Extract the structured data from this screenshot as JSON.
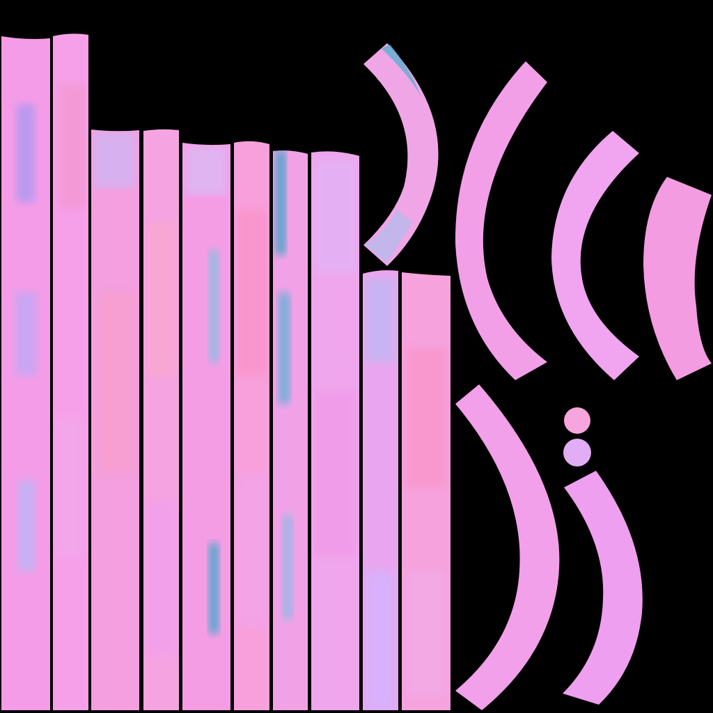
{
  "canvas": {
    "background": "#000000"
  },
  "palette": {
    "pink": "#f7a8e6",
    "magenta": "#f68cf0",
    "rose": "#f9a3d1",
    "lavender": "#d9a9f8",
    "blue": "#4aa6c8",
    "lilac": "#e6b3f5"
  }
}
